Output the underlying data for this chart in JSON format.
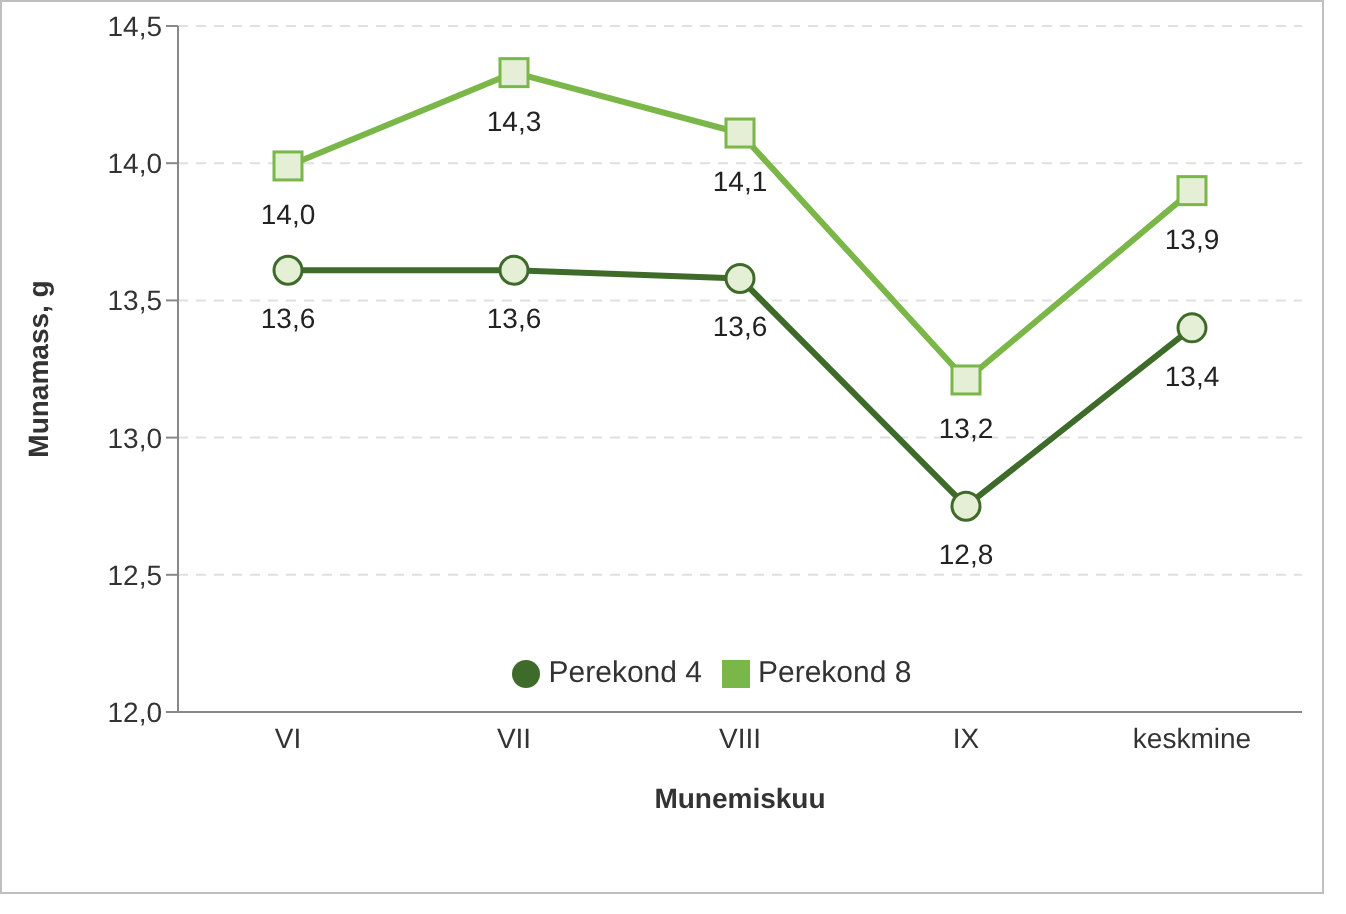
{
  "chart_data": {
    "type": "line",
    "xlabel": "Munemiskuu",
    "ylabel": "Munamass, g",
    "categories": [
      "VI",
      "VII",
      "VIII",
      "IX",
      "keskmine"
    ],
    "ylim": [
      12,
      14.5
    ],
    "yticks": [
      {
        "value": 12,
        "label": "12,0"
      },
      {
        "value": 12.5,
        "label": "12,5"
      },
      {
        "value": 13,
        "label": "13,0"
      },
      {
        "value": 13.5,
        "label": "13,5"
      },
      {
        "value": 14,
        "label": "14,0"
      },
      {
        "value": 14.5,
        "label": "14,5"
      }
    ],
    "grid": "y",
    "legend": "bottom",
    "line_style": "solid",
    "series": [
      {
        "name": "Perekond 4",
        "color": "#3f6b2a",
        "marker": "circle",
        "values": [
          13.61,
          13.61,
          13.58,
          12.75,
          13.4
        ],
        "value_labels": [
          "13,6",
          "13,6",
          "13,6",
          "12,8",
          "13,4"
        ]
      },
      {
        "name": "Perekond 8",
        "color": "#7ab648",
        "marker": "square",
        "values": [
          13.99,
          14.33,
          14.11,
          13.21,
          13.9
        ],
        "value_labels": [
          "14,0",
          "14,3",
          "14,1",
          "13,2",
          "13,9"
        ]
      }
    ]
  }
}
